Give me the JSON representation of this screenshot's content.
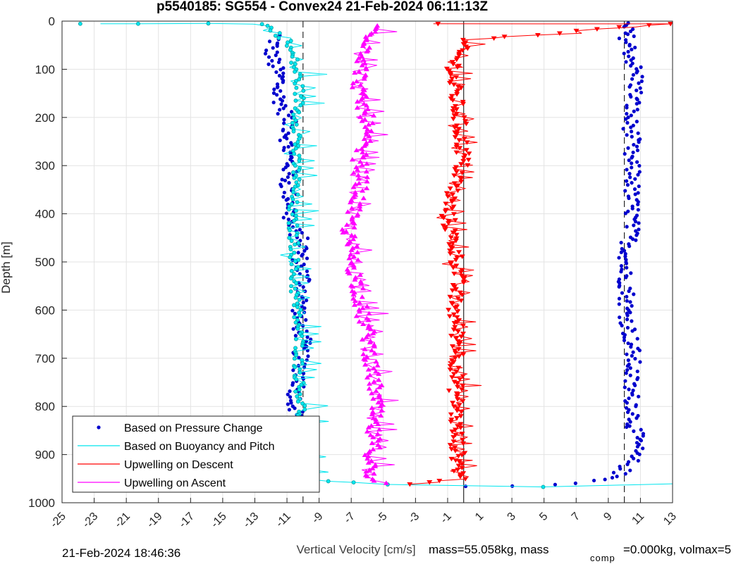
{
  "chart_data": {
    "type": "scatter",
    "title": "p5540185: SG554 - Convex24 21-Feb-2024 06:11:13Z",
    "xlabel": "Vertical Velocity [cm/s]",
    "ylabel": "Depth [m]",
    "xlim": [
      -25,
      13
    ],
    "ylim": [
      0,
      1000
    ],
    "y_reversed": true,
    "grid": true,
    "x_ticks": [
      -25,
      -23,
      -21,
      -19,
      -17,
      -15,
      -13,
      -11,
      -9,
      -7,
      -5,
      -3,
      -1,
      1,
      3,
      5,
      7,
      9,
      11,
      13
    ],
    "y_ticks": [
      0,
      100,
      200,
      300,
      400,
      500,
      600,
      700,
      800,
      900,
      1000
    ],
    "legend_position": "bottom-left",
    "reference_lines": [
      {
        "style": "dashed",
        "x": -10
      },
      {
        "style": "solid",
        "x": 0
      },
      {
        "style": "dashed",
        "x": 10
      }
    ],
    "series": [
      {
        "name": "Based on Pressure Change",
        "color": "#0000cd",
        "marker": "dot",
        "panels": [
          {
            "points": [
              [
                -11.6,
                30
              ],
              [
                -12.0,
                60
              ],
              [
                -11.8,
                90
              ],
              [
                -11.4,
                120
              ],
              [
                -11.6,
                150
              ],
              [
                -11.2,
                180
              ],
              [
                -10.8,
                220
              ],
              [
                -11.0,
                260
              ],
              [
                -10.8,
                300
              ],
              [
                -11.0,
                340
              ],
              [
                -10.7,
                380
              ],
              [
                -10.9,
                420
              ],
              [
                -10.0,
                460
              ],
              [
                -10.2,
                500
              ],
              [
                -9.9,
                540
              ],
              [
                -10.1,
                580
              ],
              [
                -10.3,
                620
              ],
              [
                -10.0,
                660
              ],
              [
                -10.2,
                700
              ],
              [
                -10.1,
                740
              ],
              [
                -10.5,
                780
              ],
              [
                -10.4,
                820
              ],
              [
                -10.2,
                860
              ],
              [
                -10.3,
                900
              ],
              [
                -10.1,
                940
              ],
              [
                -10.0,
                960
              ]
            ]
          },
          {
            "points": [
              [
                10.0,
                5
              ],
              [
                10.2,
                40
              ],
              [
                10.5,
                80
              ],
              [
                10.8,
                120
              ],
              [
                10.6,
                160
              ],
              [
                10.3,
                200
              ],
              [
                10.5,
                240
              ],
              [
                10.3,
                280
              ],
              [
                10.6,
                320
              ],
              [
                10.4,
                360
              ],
              [
                10.5,
                400
              ],
              [
                10.4,
                440
              ],
              [
                10.2,
                480
              ],
              [
                10.0,
                520
              ],
              [
                10.2,
                560
              ],
              [
                10.1,
                600
              ],
              [
                10.3,
                640
              ],
              [
                10.5,
                680
              ],
              [
                10.5,
                720
              ],
              [
                10.3,
                760
              ],
              [
                10.6,
                800
              ],
              [
                10.6,
                840
              ],
              [
                10.8,
                880
              ],
              [
                10.3,
                920
              ],
              [
                9.5,
                945
              ],
              [
                8.5,
                955
              ],
              [
                6,
                962
              ],
              [
                3,
                965
              ],
              [
                0,
                966
              ]
            ]
          }
        ]
      },
      {
        "name": "Based on Buoyancy and Pitch",
        "color": "#00e5ee",
        "marker": "circle",
        "points": [
          [
            -24,
            5
          ],
          [
            -20,
            5
          ],
          [
            -16,
            5
          ],
          [
            -12.5,
            5
          ],
          [
            -11.0,
            40
          ],
          [
            -10.6,
            80
          ],
          [
            -10.3,
            120
          ],
          [
            -10.2,
            160
          ],
          [
            -10.4,
            200
          ],
          [
            -10.3,
            240
          ],
          [
            -10.5,
            280
          ],
          [
            -10.4,
            320
          ],
          [
            -10.6,
            360
          ],
          [
            -10.7,
            400
          ],
          [
            -10.6,
            440
          ],
          [
            -10.5,
            480
          ],
          [
            -10.6,
            520
          ],
          [
            -10.5,
            560
          ],
          [
            -10.4,
            600
          ],
          [
            -10.3,
            640
          ],
          [
            -10.2,
            680
          ],
          [
            -10.3,
            720
          ],
          [
            -10.2,
            760
          ],
          [
            -10.1,
            800
          ],
          [
            -10.1,
            840
          ],
          [
            -10.0,
            880
          ],
          [
            -9.9,
            920
          ],
          [
            -9.8,
            950
          ],
          [
            -5,
            963
          ],
          [
            5,
            966
          ],
          [
            13,
            962
          ]
        ]
      },
      {
        "name": "Upwelling on Descent",
        "color": "#ff0000",
        "marker": "triangle-down",
        "points": [
          [
            -2,
            5
          ],
          [
            13,
            5
          ],
          [
            0.0,
            40
          ],
          [
            -0.5,
            80
          ],
          [
            -0.7,
            120
          ],
          [
            -0.5,
            160
          ],
          [
            -0.3,
            200
          ],
          [
            -0.2,
            240
          ],
          [
            0.0,
            280
          ],
          [
            -0.3,
            320
          ],
          [
            -0.8,
            360
          ],
          [
            -1.0,
            400
          ],
          [
            -0.8,
            440
          ],
          [
            -0.5,
            480
          ],
          [
            -0.3,
            520
          ],
          [
            -0.5,
            560
          ],
          [
            -0.6,
            600
          ],
          [
            -0.4,
            640
          ],
          [
            -0.3,
            680
          ],
          [
            -0.4,
            720
          ],
          [
            -0.5,
            760
          ],
          [
            -0.4,
            800
          ],
          [
            -0.5,
            840
          ],
          [
            -0.4,
            880
          ],
          [
            -0.3,
            920
          ],
          [
            -0.2,
            950
          ],
          [
            -3,
            962
          ]
        ]
      },
      {
        "name": "Upwelling on Ascent",
        "color": "#ff00ff",
        "marker": "triangle-up",
        "points": [
          [
            -5.5,
            10
          ],
          [
            -5.8,
            40
          ],
          [
            -6.2,
            80
          ],
          [
            -6.5,
            120
          ],
          [
            -6.5,
            160
          ],
          [
            -6.0,
            200
          ],
          [
            -6.2,
            240
          ],
          [
            -6.5,
            280
          ],
          [
            -6.4,
            320
          ],
          [
            -6.5,
            360
          ],
          [
            -7.0,
            400
          ],
          [
            -7.2,
            440
          ],
          [
            -7.0,
            480
          ],
          [
            -6.8,
            520
          ],
          [
            -6.5,
            560
          ],
          [
            -6.4,
            600
          ],
          [
            -6.0,
            640
          ],
          [
            -5.8,
            680
          ],
          [
            -5.8,
            720
          ],
          [
            -5.5,
            760
          ],
          [
            -5.5,
            800
          ],
          [
            -5.7,
            840
          ],
          [
            -5.6,
            880
          ],
          [
            -5.8,
            920
          ],
          [
            -6.0,
            950
          ],
          [
            -5,
            958
          ]
        ]
      }
    ]
  },
  "footer": {
    "timestamp": "21-Feb-2024 18:46:36",
    "mass": "mass=55.058kg, mass",
    "mass_comp_sub": "comp",
    "mass_comp_rest": "=0.000kg, volmax=5"
  }
}
